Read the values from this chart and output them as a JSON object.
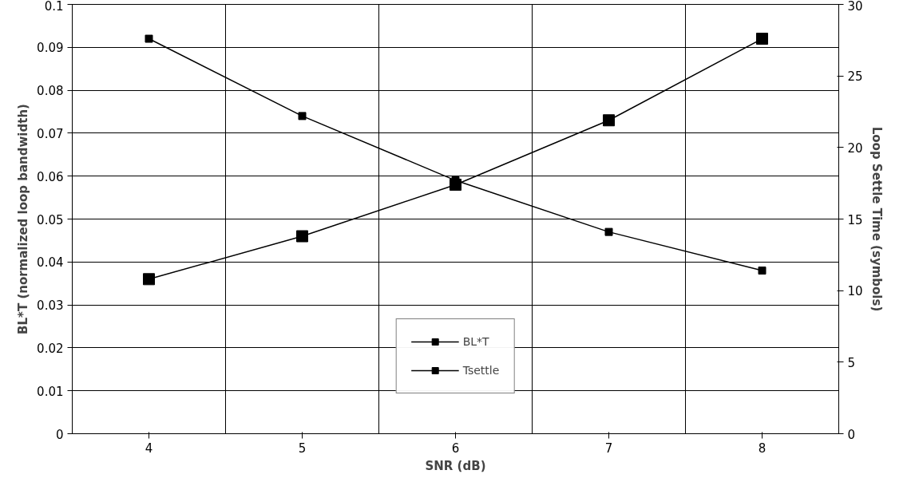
{
  "chart_data": {
    "type": "line",
    "xlabel": "SNR (dB)",
    "ylabel": "BL*T (normalized loop bandwidth)",
    "y2label": "Loop Settle Time (symbols)",
    "categories": [
      "4",
      "5",
      "6",
      "7",
      "8"
    ],
    "series": [
      {
        "name": "BL*T",
        "color": "#000000",
        "values": [
          0.036,
          0.046,
          0.058,
          0.073,
          0.092
        ]
      },
      {
        "name": "Tsettle",
        "color": "#000000",
        "axis": "y2",
        "values": [
          27.6,
          22.2,
          17.7,
          14.1,
          11.4
        ]
      }
    ],
    "ylim": [
      0,
      0.1
    ],
    "yticks": [
      0,
      0.01,
      0.02,
      0.03,
      0.04,
      0.05,
      0.06,
      0.07,
      0.08,
      0.09,
      0.1
    ],
    "y2lim": [
      0,
      30
    ],
    "y2ticks": [
      0,
      5,
      10,
      15,
      20,
      25,
      30
    ],
    "grid": true,
    "legend": "bottom",
    "marker": "square",
    "line_style": "solid"
  }
}
